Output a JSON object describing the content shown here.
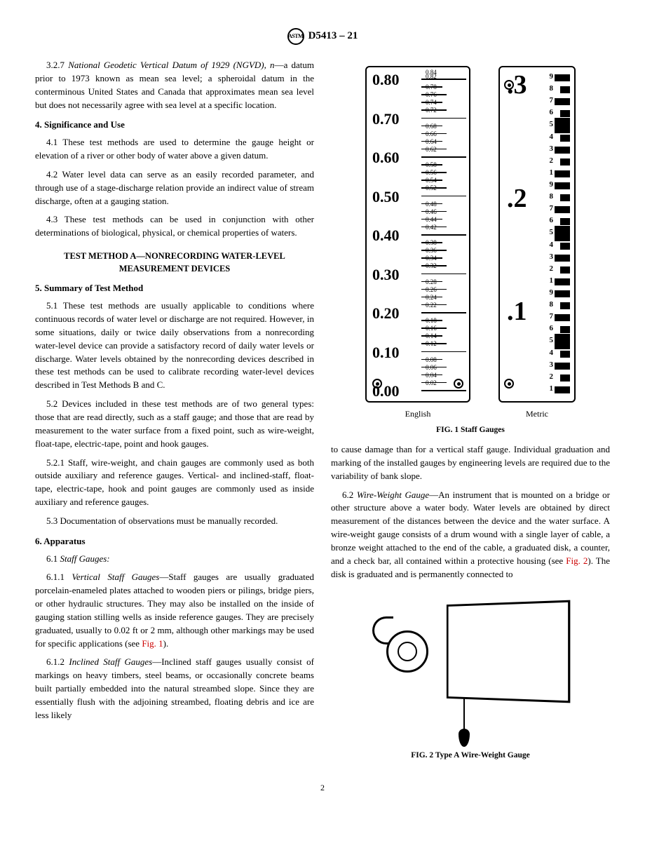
{
  "header": {
    "designation": "D5413 – 21",
    "logo_text": "ASTM"
  },
  "page_number": "2",
  "left_column": {
    "p327_lead": "3.2.7 ",
    "p327_term": "National Geodetic Vertical Datum of 1929 (NGVD), n",
    "p327_text": "—a datum prior to 1973 known as mean sea level; a spheroidal datum in the conterminous United States and Canada that approximates mean sea level but does not necessarily agree with sea level at a specific location.",
    "h4": "4.  Significance and Use",
    "p41_lead": "4.1 ",
    "p41": "These test methods are used to determine the gauge height or elevation of a river or other body of water above a given datum.",
    "p42_lead": "4.2 ",
    "p42": "Water level data can serve as an easily recorded parameter, and through use of a stage-discharge relation provide an indirect value of stream discharge, often at a gauging station.",
    "p43_lead": "4.3 ",
    "p43": "These test methods can be used in conjunction with other determinations of biological, physical, or chemical properties of waters.",
    "method_head": "TEST METHOD A—NONRECORDING WATER-LEVEL MEASUREMENT DEVICES",
    "h5": "5.  Summary of Test Method",
    "p51_lead": "5.1 ",
    "p51": "These test methods are usually applicable to conditions where continuous records of water level or discharge are not required. However, in some situations, daily or twice daily observations from a nonrecording water-level device can provide a satisfactory record of daily water levels or discharge. Water levels obtained by the nonrecording devices described in these test methods can be used to calibrate recording water-level devices described in Test Methods B and C.",
    "p52_lead": "5.2 ",
    "p52": "Devices included in these test methods are of two general types: those that are read directly, such as a staff gauge; and those that are read by measurement to the water surface from a fixed point, such as wire-weight, float-tape, electric-tape, point and hook gauges.",
    "p521_lead": "5.2.1 ",
    "p521": "Staff, wire-weight, and chain gauges are commonly used as both outside auxiliary and reference gauges. Vertical- and inclined-staff, float-tape, electric-tape, hook and point gauges are commonly used as inside auxiliary and reference gauges.",
    "p53_lead": "5.3 ",
    "p53": "Documentation of observations must be manually recorded.",
    "h6": "6.  Apparatus",
    "p61_lead": "6.1 ",
    "p61_term": "Staff Gauges:",
    "p611_lead": "6.1.1 ",
    "p611_term": "Vertical Staff Gauges",
    "p611": "—Staff gauges are usually graduated porcelain-enameled plates attached to wooden piers or pilings, bridge piers, or other hydraulic structures. They may also be installed on the inside of gauging station stilling wells as inside reference gauges. They are precisely graduated, usually to 0.02 ft or 2 mm, although other markings may be used for specific applications (see ",
    "p611_ref": "Fig. 1",
    "p611_end": ").",
    "p612_lead": "6.1.2 ",
    "p612_term": "Inclined Staff Gauges",
    "p612": "—Inclined staff gauges usually consist of markings on heavy timbers, steel beams, or occasionally concrete beams built partially embedded into the natural streambed slope. Since they are essentially flush with the adjoining streambed, floating debris and ice are less likely"
  },
  "right_column": {
    "p_cont": "to cause damage than for a vertical staff gauge. Individual graduation and marking of the installed gauges by engineering levels are required due to the variability of bank slope.",
    "p62_lead": "6.2 ",
    "p62_term": "Wire-Weight Gauge",
    "p62": "—An instrument that is mounted on a bridge or other structure above a water body. Water levels are obtained by direct measurement of the distances between the device and the water surface. A wire-weight gauge consists of a drum wound with a single layer of cable, a bronze weight attached to the end of the cable, a graduated disk, a counter, and a check bar, all contained within a protective housing (see ",
    "p62_ref": "Fig. 2",
    "p62_end": "). The disk is graduated and is permanently connected to"
  },
  "fig1": {
    "caption": "FIG. 1  Staff Gauges",
    "english_label": "English",
    "metric_label": "Metric",
    "english_majors": [
      "0.80",
      "0.70",
      "0.60",
      "0.50",
      "0.40",
      "0.30",
      "0.20",
      "0.10",
      "0.00"
    ],
    "english_minors": [
      "0.84",
      "0.82",
      "0.78",
      "0.76",
      "0.74",
      "0.72",
      "0.68",
      "0.66",
      "0.64",
      "0.62",
      "0.58",
      "0.56",
      "0.54",
      "0.52",
      "0.48",
      "0.46",
      "0.44",
      "0.42",
      "0.38",
      "0.36",
      "0.34",
      "0.32",
      "0.28",
      "0.26",
      "0.24",
      "0.22",
      "0.18",
      "0.16",
      "0.14",
      "0.12",
      "0.08",
      "0.06",
      "0.04",
      "0.02"
    ],
    "metric_bigs": [
      ".3",
      ".2",
      ".1"
    ],
    "metric_nums": [
      "9",
      "8",
      "7",
      "6",
      "5",
      "4",
      "3",
      "2",
      "1",
      "9",
      "8",
      "7",
      "6",
      "5",
      "4",
      "3",
      "2",
      "1",
      "9",
      "8",
      "7",
      "6",
      "5",
      "4",
      "3",
      "2",
      "1"
    ]
  },
  "fig2": {
    "caption": "FIG. 2  Type A Wire-Weight Gauge"
  }
}
